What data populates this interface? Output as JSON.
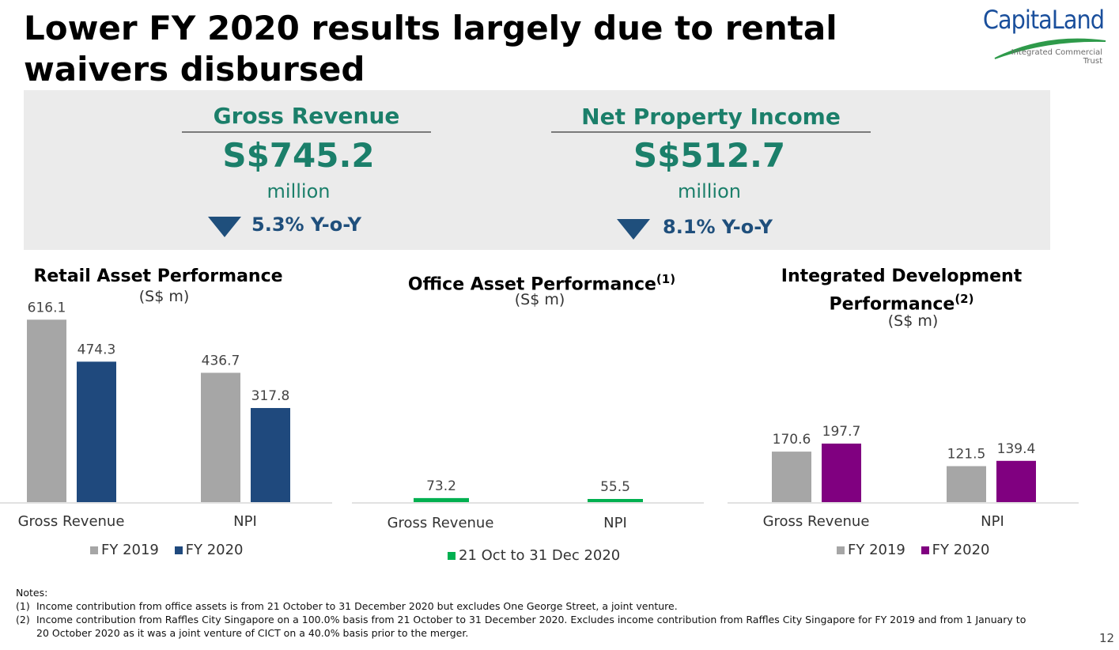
{
  "title": "Lower FY 2020 results largely due to rental waivers disbursed",
  "logo": {
    "brand": "CapitaLand",
    "sub_line1": "Integrated Commercial",
    "sub_line2": "Trust"
  },
  "kpis": [
    {
      "label": "Gross Revenue",
      "value": "S$745.2",
      "unit": "million",
      "change": "5.3% Y-o-Y",
      "direction": "down"
    },
    {
      "label": "Net Property Income",
      "value": "S$512.7",
      "unit": "million",
      "change": "8.1% Y-o-Y",
      "direction": "down"
    }
  ],
  "colors": {
    "fy2019": "#a6a6a6",
    "retail_fy2020": "#1f497d",
    "office": "#00b050",
    "integrated_fy2020": "#800080",
    "accent": "#1b7f6a"
  },
  "chart_data": [
    {
      "type": "bar",
      "title": "Retail Asset Performance",
      "unit": "(S$ m)",
      "categories": [
        "Gross Revenue",
        "NPI"
      ],
      "series": [
        {
          "name": "FY 2019",
          "values": [
            616.1,
            436.7
          ]
        },
        {
          "name": "FY 2020",
          "values": [
            474.3,
            317.8
          ]
        }
      ],
      "legend_position": "bottom"
    },
    {
      "type": "bar",
      "title": "Office Asset Performance",
      "title_note": "(1)",
      "unit": "(S$ m)",
      "categories": [
        "Gross Revenue",
        "NPI"
      ],
      "series": [
        {
          "name": "21 Oct to 31 Dec 2020",
          "values": [
            73.2,
            55.5
          ]
        }
      ],
      "legend_position": "bottom"
    },
    {
      "type": "bar",
      "title_line1": "Integrated Development",
      "title_line2": "Performance",
      "title_note": "(2)",
      "unit": "(S$ m)",
      "categories": [
        "Gross Revenue",
        "NPI"
      ],
      "series": [
        {
          "name": "FY 2019",
          "values": [
            170.6,
            121.5
          ]
        },
        {
          "name": "FY 2020",
          "values": [
            197.7,
            139.4
          ]
        }
      ],
      "legend_position": "bottom"
    }
  ],
  "notes": {
    "heading": "Notes:",
    "items": [
      {
        "marker": "(1)",
        "text": "Income contribution from office assets is from 21 October to 31 December 2020 but excludes One George Street, a joint venture."
      },
      {
        "marker": "(2)",
        "text": "Income contribution from Raffles City Singapore on a 100.0% basis from 21 October to 31 December 2020.  Excludes income contribution from Raffles City Singapore for FY 2019 and from 1 January to 20 October 2020 as it was a joint venture of CICT on a 40.0% basis prior to the merger."
      }
    ]
  },
  "page_number": "12"
}
